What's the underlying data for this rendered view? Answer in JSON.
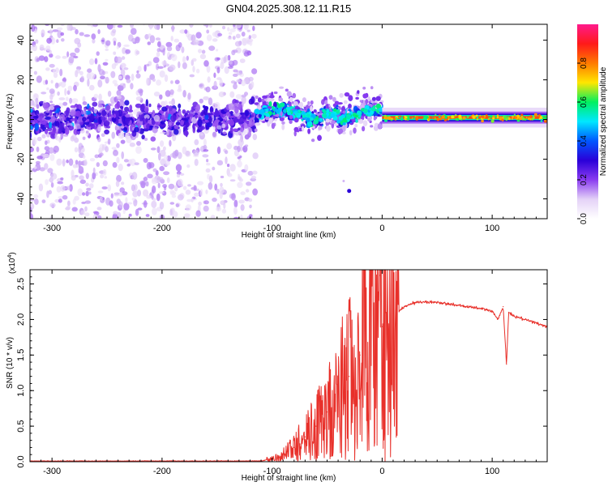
{
  "chart_data": [
    {
      "type": "heatmap",
      "title": "GN04.2025.308.12.11.R15",
      "xlabel": "Height of straight line (km)",
      "ylabel": "Frequency (Hz)",
      "xlim": [
        -320,
        150
      ],
      "ylim": [
        -50,
        48
      ],
      "x_ticks": [
        -300,
        -200,
        -100,
        0,
        100
      ],
      "y_ticks": [
        -40,
        -20,
        0,
        20,
        40
      ],
      "colorbar": {
        "label": "Normalized spectral amplitude",
        "range": [
          0,
          1
        ],
        "ticks": [
          0.0,
          0.2,
          0.4,
          0.6,
          0.8
        ],
        "colors": [
          "#ffffff",
          "#e4d2f7",
          "#8a3cf0",
          "#2a00d8",
          "#0057ff",
          "#00e8ff",
          "#00f060",
          "#ffe600",
          "#ff7a00",
          "#ff1a1a",
          "#ff1a8c"
        ]
      },
      "regions": [
        {
          "x_range": [
            -320,
            -115
          ],
          "description_values": {
            "centre_hz": 0,
            "spread_hz": 48,
            "core_spread_hz": 10,
            "amplitude_max": 0.3
          }
        },
        {
          "x_range": [
            -115,
            0
          ],
          "description_values": {
            "centre_hz": 2,
            "spread_hz": 14,
            "amplitude_max": 0.5
          }
        },
        {
          "x_range": [
            0,
            150
          ],
          "description_values": {
            "centre_hz": 1,
            "spread_hz": 3,
            "amplitude_max": 0.85
          }
        }
      ]
    },
    {
      "type": "line",
      "xlabel": "Height of straight line (km)",
      "ylabel": "SNR (10 * v/v)",
      "ylabel_multiplier": "(x10",
      "ylabel_exponent": "4",
      "ylabel_multiplier_close": ")",
      "xlim": [
        -320,
        150
      ],
      "ylim": [
        0,
        2.7
      ],
      "x_ticks": [
        -300,
        -200,
        -100,
        0,
        100
      ],
      "y_ticks": [
        0.0,
        0.5,
        1.0,
        1.5,
        2.0,
        2.5
      ],
      "color": "#e8302a",
      "series": [
        {
          "name": "SNR",
          "x": [
            -320,
            -300,
            -250,
            -200,
            -150,
            -110,
            -100,
            -90,
            -80,
            -70,
            -60,
            -50,
            -40,
            -30,
            -20,
            -10,
            -2,
            0,
            10,
            20,
            30,
            40,
            50,
            60,
            70,
            80,
            90,
            100,
            105,
            110,
            113,
            115,
            120,
            130,
            140,
            150
          ],
          "y": [
            0.01,
            0.01,
            0.01,
            0.01,
            0.01,
            0.01,
            0.04,
            0.1,
            0.2,
            0.35,
            0.5,
            0.7,
            0.95,
            1.2,
            1.5,
            1.75,
            2.62,
            1.9,
            2.05,
            2.18,
            2.24,
            2.25,
            2.24,
            2.22,
            2.2,
            2.18,
            2.15,
            2.12,
            2.0,
            2.18,
            1.37,
            2.1,
            2.05,
            2.0,
            1.95,
            1.9
          ]
        }
      ]
    }
  ]
}
